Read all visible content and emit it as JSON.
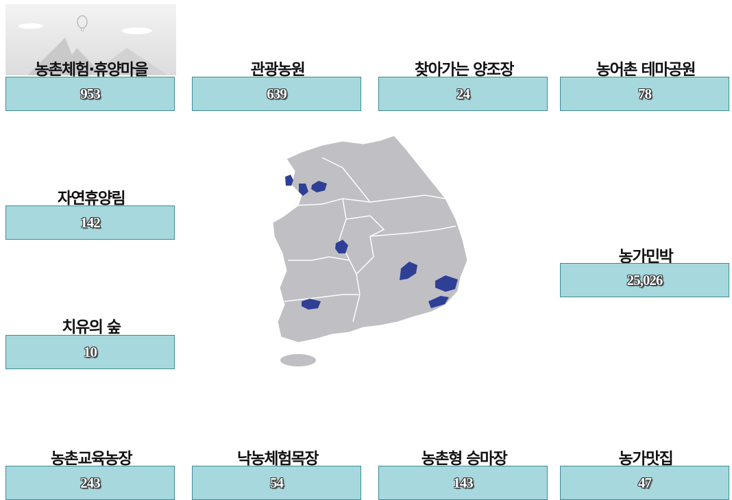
{
  "items": [
    {
      "label": "농촌체험·휴양마을",
      "value": "953"
    },
    {
      "label": "관광농원",
      "value": "639"
    },
    {
      "label": "찾아가는 양조장",
      "value": "24"
    },
    {
      "label": "농어촌 테마공원",
      "value": "78"
    },
    {
      "label": "자연휴양림",
      "value": "142"
    },
    {
      "label": "치유의 숲",
      "value": "10"
    },
    {
      "label": "농가민박",
      "value": "25,026"
    },
    {
      "label": "농촌교육농장",
      "value": "243"
    },
    {
      "label": "낙농체험목장",
      "value": "54"
    },
    {
      "label": "농촌형 승마장",
      "value": "143"
    },
    {
      "label": "농가맛집",
      "value": "47"
    }
  ]
}
